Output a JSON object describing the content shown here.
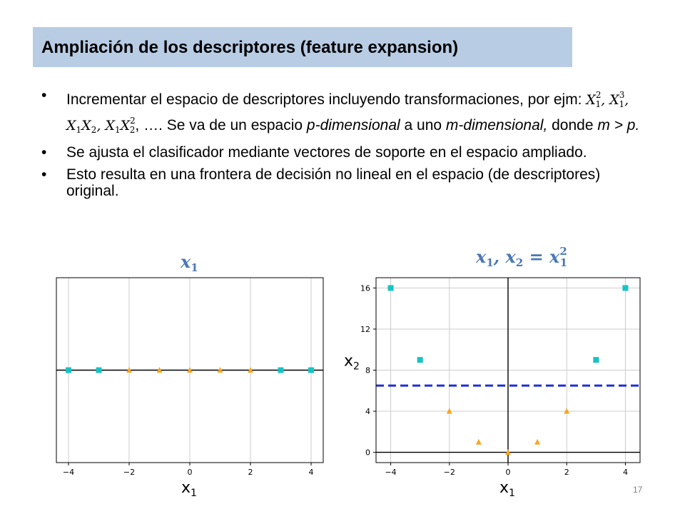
{
  "slide": {
    "title": "Ampliación de los descriptores (feature expansion)",
    "page_number": "17",
    "bullets": {
      "b1_text1": "Incrementar el espacio de descriptores incluyendo transformaciones,  por ejm: ",
      "b1_formula": ", ….",
      "b1_text2": " Se va de un espacio ",
      "b1_p_dim": "p-dimensional",
      "b1_text3": " a uno ",
      "b1_m_dim": "m-dimensional,",
      "b1_text4": " donde ",
      "b1_cond": "m > p.",
      "b2": "Se ajusta el clasificador mediante vectores de soporte en el espacio ampliado.",
      "b3": "Esto resulta en una frontera de decisión no lineal en el espacio (de descriptores) original."
    },
    "formula_terms": [
      {
        "base": "X",
        "sub": "1",
        "sup": "2"
      },
      {
        "base": "X",
        "sub": "1",
        "sup": "3"
      },
      {
        "base": "X",
        "sub": "1",
        "base2": "X",
        "sub2": "2"
      },
      {
        "base": "X",
        "sub": "1",
        "base2": "X",
        "sub2": "2",
        "sup2": "2"
      }
    ]
  },
  "chart_titles": {
    "left_var": "x",
    "left_sub": "1",
    "right_var1": "x",
    "right_sub1": "1",
    "right_sep": ", ",
    "right_var2": "x",
    "right_sub2": "2",
    "right_eq": " = ",
    "right_var3": "x",
    "right_sub3": "1",
    "right_sup3": "2"
  },
  "colors": {
    "square": "#14c4c4",
    "triangle": "#f5a623",
    "boundary": "#1f2fd6",
    "grid": "#cccccc",
    "axis_line": "#000000"
  },
  "chart_data": [
    {
      "type": "scatter",
      "xlabel": "x1",
      "ylabel": "",
      "xlim": [
        -4.4,
        4.4
      ],
      "ylim": [
        -1,
        1
      ],
      "xticks": [
        -4,
        -2,
        0,
        2,
        4
      ],
      "grid": true,
      "series": [
        {
          "marker": "square",
          "points": [
            [
              -4,
              0
            ],
            [
              -3,
              0
            ],
            [
              3,
              0
            ],
            [
              4,
              0
            ]
          ]
        },
        {
          "marker": "triangle",
          "points": [
            [
              -2,
              0
            ],
            [
              -1,
              0
            ],
            [
              0,
              0
            ],
            [
              1,
              0
            ],
            [
              2,
              0
            ]
          ]
        }
      ]
    },
    {
      "type": "scatter",
      "xlabel": "x1",
      "ylabel": "x2",
      "xlim": [
        -4.5,
        4.5
      ],
      "ylim": [
        -1,
        17
      ],
      "xticks": [
        -4,
        -2,
        0,
        2,
        4
      ],
      "yticks": [
        0,
        4,
        8,
        12,
        16
      ],
      "grid": true,
      "decision_boundary_y": 6.5,
      "series": [
        {
          "marker": "square",
          "points": [
            [
              -4,
              16
            ],
            [
              -3,
              9
            ],
            [
              3,
              9
            ],
            [
              4,
              16
            ]
          ]
        },
        {
          "marker": "triangle",
          "points": [
            [
              -2,
              4
            ],
            [
              -1,
              1
            ],
            [
              0,
              0
            ],
            [
              1,
              1
            ],
            [
              2,
              4
            ]
          ]
        }
      ]
    }
  ]
}
